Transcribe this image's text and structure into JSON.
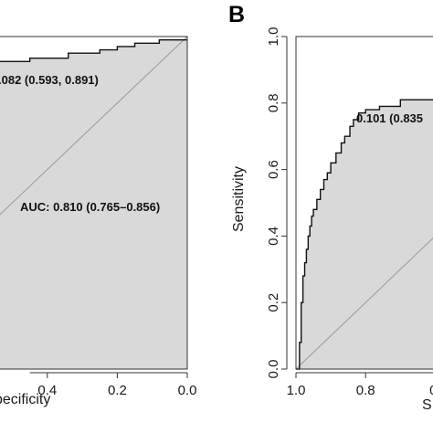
{
  "chart_data": [
    {
      "type": "line",
      "panel": "A",
      "panel_label": "",
      "xlabel": "Specificity",
      "xlabel_visible": "pecificity",
      "ylabel": "",
      "x_reversed": true,
      "xlim": [
        1.0,
        0.0
      ],
      "ylim": [
        0.0,
        1.0
      ],
      "x_ticks": [
        0.4,
        0.2,
        0.0
      ],
      "x_tick_labels": [
        "0.4",
        "0.2",
        "0.0"
      ],
      "y_ticks": [],
      "y_tick_labels": [],
      "grid": false,
      "annotations": [
        {
          "text": ".082 (0.593, 0.891)",
          "x": 0.95,
          "y": 0.891
        },
        {
          "text": "AUC: 0.810 (0.765–0.856)",
          "x": 0.55,
          "y": 0.45
        }
      ],
      "series": [
        {
          "x": [
            0.905,
            0.85,
            0.85,
            0.8,
            0.8,
            0.72,
            0.72,
            0.6,
            0.6,
            0.45,
            0.45,
            0.34,
            0.34,
            0.25,
            0.25,
            0.2,
            0.2,
            0.15,
            0.15,
            0.08,
            0.08,
            0.0
          ],
          "y": [
            0.891,
            0.891,
            0.895,
            0.895,
            0.905,
            0.905,
            0.915,
            0.915,
            0.925,
            0.925,
            0.935,
            0.935,
            0.95,
            0.95,
            0.96,
            0.96,
            0.97,
            0.97,
            0.98,
            0.98,
            0.99,
            0.99
          ]
        }
      ],
      "diagonal": true
    },
    {
      "type": "line",
      "panel": "B",
      "panel_label": "B",
      "xlabel": "Specificity",
      "xlabel_visible": "S",
      "ylabel": "Sensitivity",
      "x_reversed": true,
      "xlim": [
        1.0,
        0.0
      ],
      "ylim": [
        0.0,
        1.0
      ],
      "x_ticks": [
        1.0,
        0.8,
        0.6
      ],
      "x_tick_labels": [
        "1.0",
        "0.8",
        "0."
      ],
      "y_ticks": [
        0.0,
        0.2,
        0.4,
        0.6,
        0.8,
        1.0
      ],
      "y_tick_labels": [
        "0.0",
        "0.2",
        "0.4",
        "0.6",
        "0.8",
        "1.0"
      ],
      "grid": false,
      "annotations": [
        {
          "text": "0.101 (0.835",
          "x": 0.68,
          "y": 0.77
        }
      ],
      "series": [
        {
          "x": [
            1.0,
            0.99,
            0.99,
            0.985,
            0.985,
            0.98,
            0.98,
            0.975,
            0.975,
            0.97,
            0.97,
            0.965,
            0.965,
            0.96,
            0.96,
            0.955,
            0.955,
            0.95,
            0.95,
            0.94,
            0.94,
            0.93,
            0.93,
            0.92,
            0.92,
            0.91,
            0.91,
            0.9,
            0.9,
            0.885,
            0.885,
            0.87,
            0.87,
            0.86,
            0.86,
            0.845,
            0.845,
            0.835,
            0.835,
            0.82,
            0.82,
            0.8,
            0.8,
            0.78,
            0.78,
            0.76,
            0.76,
            0.7,
            0.7,
            0.5,
            0.5,
            0.0
          ],
          "y": [
            0.0,
            0.0,
            0.08,
            0.08,
            0.2,
            0.2,
            0.28,
            0.28,
            0.32,
            0.32,
            0.36,
            0.36,
            0.4,
            0.4,
            0.43,
            0.43,
            0.46,
            0.46,
            0.48,
            0.48,
            0.51,
            0.51,
            0.54,
            0.54,
            0.57,
            0.57,
            0.59,
            0.59,
            0.62,
            0.62,
            0.65,
            0.65,
            0.68,
            0.68,
            0.7,
            0.7,
            0.73,
            0.73,
            0.75,
            0.75,
            0.77,
            0.77,
            0.78,
            0.78,
            0.78,
            0.78,
            0.79,
            0.79,
            0.81,
            0.81,
            0.81,
            0.81
          ]
        }
      ],
      "diagonal": true
    }
  ]
}
